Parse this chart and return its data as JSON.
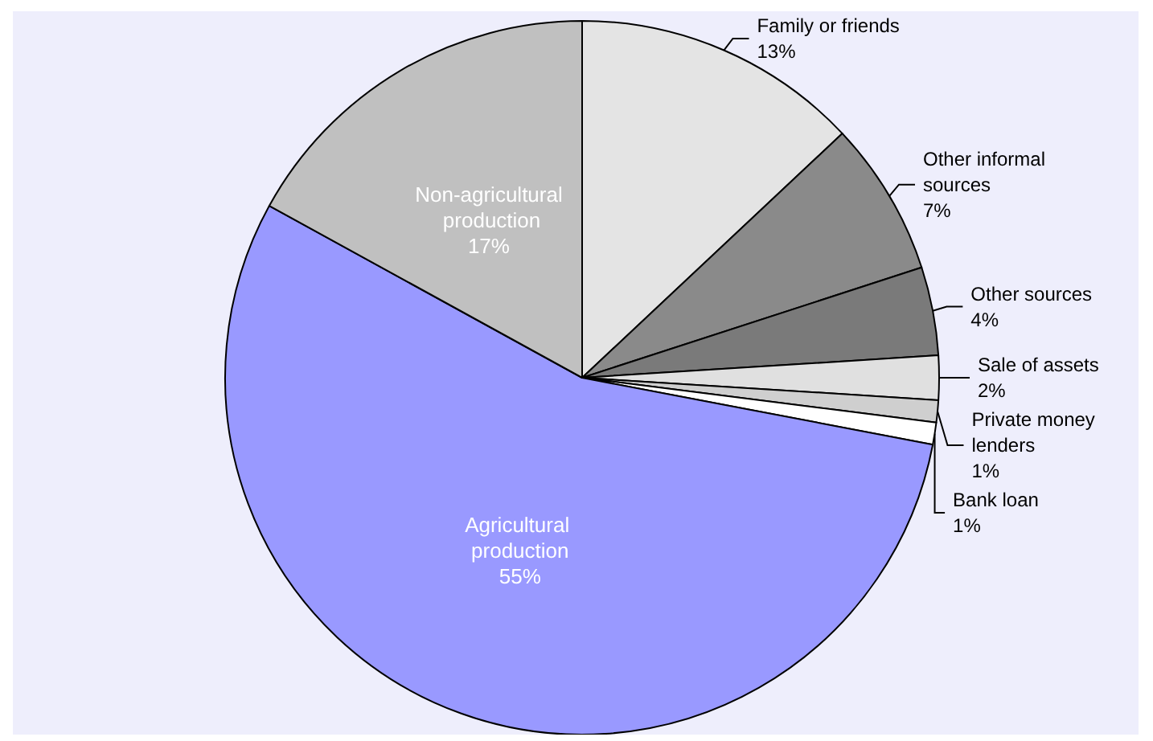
{
  "chart_data": {
    "type": "pie",
    "categories": [
      "Family or friends",
      "Other informal sources",
      "Other sources",
      "Sale of assets",
      "Private money lenders",
      "Bank loan",
      "Agricultural production",
      "Non-agricultural production"
    ],
    "values": [
      13,
      7,
      4,
      2,
      1,
      1,
      55,
      17
    ],
    "value_labels": [
      "13%",
      "7%",
      "4%",
      "2%",
      "1%",
      "1%",
      "55%",
      "17%"
    ],
    "colors": [
      "#e4e4e4",
      "#8a8a8a",
      "#7a7a7a",
      "#e0e0e0",
      "#cfcfcf",
      "#ffffff",
      "#9999ff",
      "#c0c0c0"
    ],
    "legend": false
  }
}
